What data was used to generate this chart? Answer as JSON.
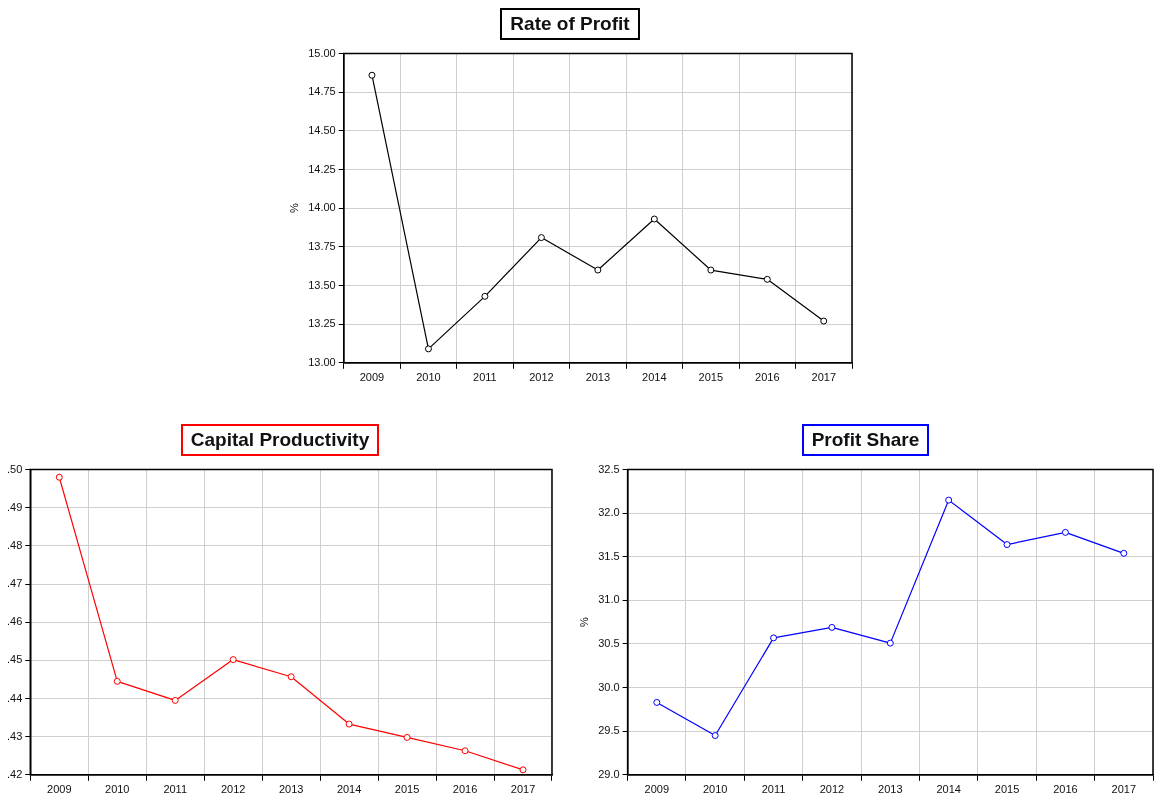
{
  "chart_data": [
    {
      "type": "line",
      "title": "Rate of Profit",
      "ylabel": "%",
      "categories": [
        "2009",
        "2010",
        "2011",
        "2012",
        "2013",
        "2014",
        "2015",
        "2016",
        "2017"
      ],
      "series": [
        {
          "color": "#000000",
          "values": [
            14.86,
            13.09,
            13.43,
            13.81,
            13.6,
            13.93,
            13.6,
            13.54,
            13.27
          ]
        }
      ],
      "ylim": [
        13,
        15
      ],
      "yticks": [
        {
          "value": 13,
          "label": "13.00"
        },
        {
          "value": 13.25,
          "label": "13.25"
        },
        {
          "value": 13.5,
          "label": "13.50"
        },
        {
          "value": 13.75,
          "label": "13.75"
        },
        {
          "value": 14,
          "label": "14.00"
        },
        {
          "value": 14.25,
          "label": "14.25"
        },
        {
          "value": 14.5,
          "label": "14.50"
        },
        {
          "value": 14.75,
          "label": "14.75"
        },
        {
          "value": 15,
          "label": "15.00"
        }
      ],
      "grid": true,
      "legend": false,
      "marker": "circle",
      "line_style": "solid"
    },
    {
      "type": "line",
      "title": "Capital Productivity",
      "categories": [
        "2009",
        "2010",
        "2011",
        "2012",
        "2013",
        "2014",
        "2015",
        "2016",
        "2017"
      ],
      "series": [
        {
          "color": "#ff0000",
          "values": [
            0.498,
            0.4445,
            0.4395,
            0.4502,
            0.4457,
            0.4333,
            0.4298,
            0.4263,
            0.4213
          ]
        }
      ],
      "ylim": [
        0.42,
        0.5
      ],
      "yticks": [
        {
          "value": 0.42,
          "label": ".42"
        },
        {
          "value": 0.43,
          "label": ".43"
        },
        {
          "value": 0.44,
          "label": ".44"
        },
        {
          "value": 0.45,
          "label": ".45"
        },
        {
          "value": 0.46,
          "label": ".46"
        },
        {
          "value": 0.47,
          "label": ".47"
        },
        {
          "value": 0.48,
          "label": ".48"
        },
        {
          "value": 0.49,
          "label": ".49"
        },
        {
          "value": 0.5,
          "label": ".50"
        }
      ],
      "grid": true,
      "legend": false,
      "marker": "circle",
      "line_style": "solid"
    },
    {
      "type": "line",
      "title": "Profit Share",
      "ylabel": "%",
      "categories": [
        "2009",
        "2010",
        "2011",
        "2012",
        "2013",
        "2014",
        "2015",
        "2016",
        "2017"
      ],
      "series": [
        {
          "color": "#0000ff",
          "values": [
            29.83,
            29.45,
            30.57,
            30.69,
            30.51,
            32.15,
            31.64,
            31.78,
            31.54
          ]
        }
      ],
      "ylim": [
        29,
        32.5
      ],
      "yticks": [
        {
          "value": 29,
          "label": "29.0"
        },
        {
          "value": 29.5,
          "label": "29.5"
        },
        {
          "value": 30,
          "label": "30.0"
        },
        {
          "value": 30.5,
          "label": "30.5"
        },
        {
          "value": 31,
          "label": "31.0"
        },
        {
          "value": 31.5,
          "label": "31.5"
        },
        {
          "value": 32,
          "label": "32.0"
        },
        {
          "value": 32.5,
          "label": "32.5"
        }
      ],
      "grid": true,
      "legend": false,
      "marker": "circle",
      "line_style": "solid"
    }
  ]
}
